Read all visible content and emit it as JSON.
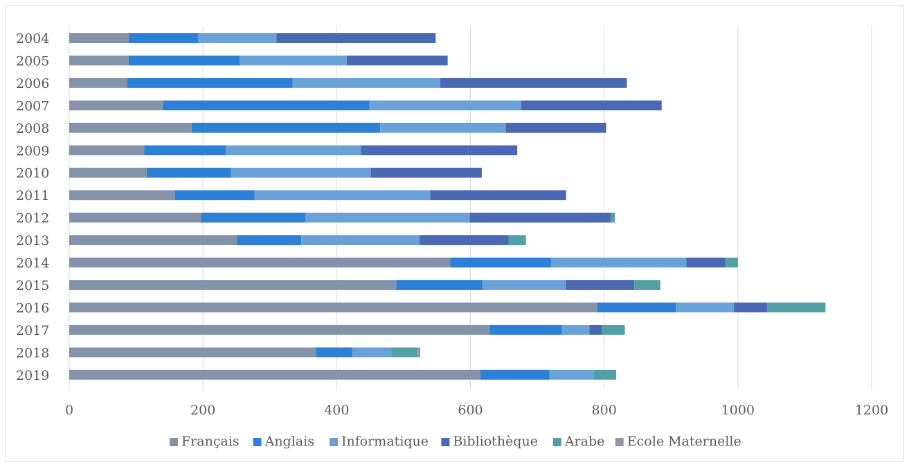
{
  "chart_data": {
    "type": "bar",
    "orientation": "horizontal",
    "stacked": true,
    "title": "",
    "xlabel": "",
    "ylabel": "",
    "xlim": [
      0,
      1200
    ],
    "x_ticks": [
      0,
      200,
      400,
      600,
      800,
      1000,
      1200
    ],
    "grid": "vertical",
    "legend_position": "bottom",
    "categories": [
      "2004",
      "2005",
      "2006",
      "2007",
      "2008",
      "2009",
      "2010",
      "2011",
      "2012",
      "2013",
      "2014",
      "2015",
      "2016",
      "2017",
      "2018",
      "2019"
    ],
    "series": [
      {
        "name": "Français",
        "color": "#8493A9",
        "values": [
          89,
          89,
          87,
          140,
          183,
          112,
          116,
          158,
          197,
          251,
          570,
          489,
          790,
          629,
          369,
          615
        ]
      },
      {
        "name": "Anglais",
        "color": "#2E7FD6",
        "values": [
          104,
          166,
          247,
          309,
          282,
          122,
          126,
          119,
          156,
          96,
          151,
          129,
          117,
          108,
          54,
          103
        ]
      },
      {
        "name": "Informatique",
        "color": "#6AA2D8",
        "values": [
          117,
          160,
          221,
          227,
          188,
          202,
          209,
          263,
          246,
          177,
          202,
          125,
          87,
          41,
          59,
          66
        ]
      },
      {
        "name": "Bibliothèque",
        "color": "#4A68B3",
        "values": [
          238,
          151,
          279,
          210,
          150,
          234,
          166,
          203,
          211,
          133,
          58,
          102,
          50,
          19,
          0,
          0
        ]
      },
      {
        "name": "Arabe",
        "color": "#52A0A5",
        "values": [
          0,
          0,
          0,
          0,
          0,
          0,
          0,
          0,
          6,
          26,
          19,
          39,
          87,
          34,
          39,
          34
        ]
      },
      {
        "name": "Ecole Maternelle",
        "color": "#9E93A5",
        "values": [
          0,
          0,
          0,
          0,
          0,
          0,
          0,
          0,
          0,
          0,
          0,
          0,
          0,
          0,
          4,
          0
        ]
      }
    ]
  }
}
